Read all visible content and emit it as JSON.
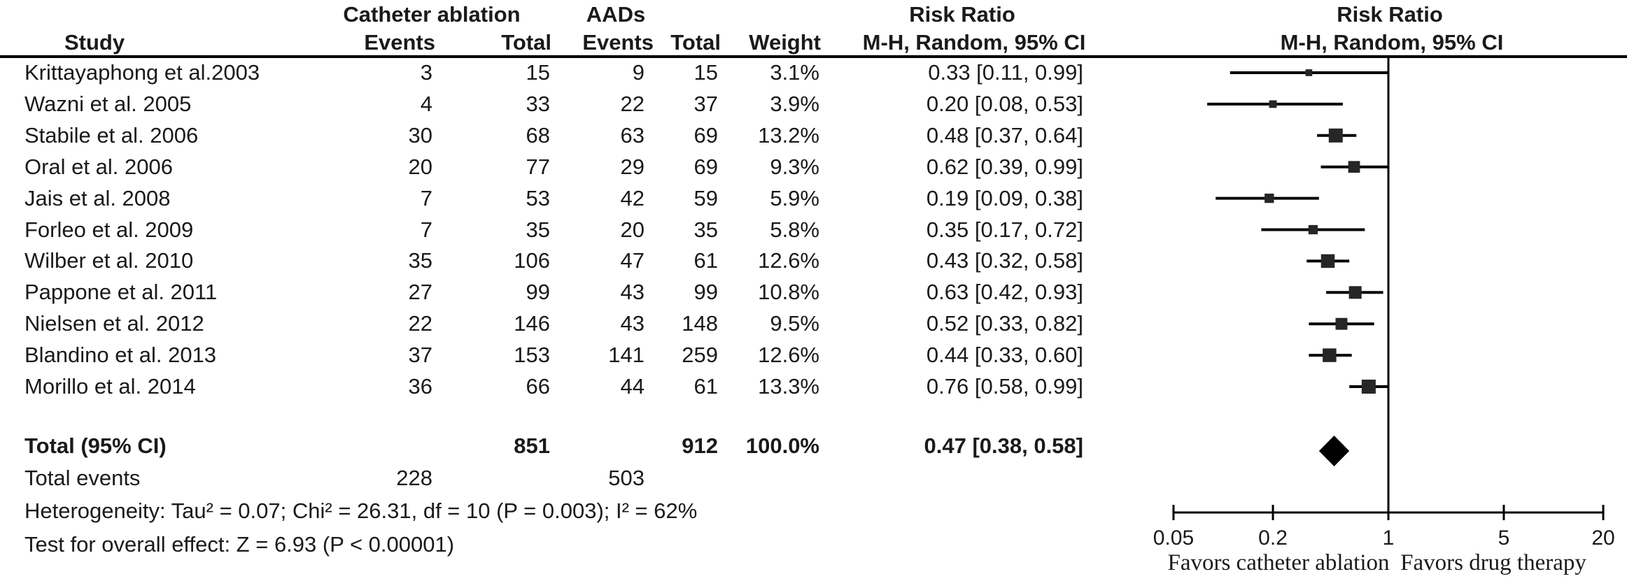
{
  "header": {
    "group_catheter": "Catheter ablation",
    "group_aads": "AADs",
    "study": "Study",
    "events": "Events",
    "total": "Total",
    "weight": "Weight",
    "rr_title": "Risk Ratio",
    "rr_method": "M-H, Random, 95% CI"
  },
  "chart_data": {
    "type": "scatter",
    "subtype": "forest-plot-meta-analysis",
    "effect_measure": "Risk Ratio, M-H, Random, 95% CI",
    "x_scale": "log",
    "x_range": [
      0.05,
      20
    ],
    "null_line": 1,
    "x_ticks": [
      "0.05",
      "0.2",
      "1",
      "5",
      "20"
    ],
    "x_tick_values": [
      0.05,
      0.2,
      1,
      5,
      20
    ],
    "favors_left": "Favors catheter ablation",
    "favors_right": "Favors drug therapy",
    "studies": [
      {
        "name": "Krittayaphong et al.2003",
        "events_ablation": "3",
        "total_ablation": "15",
        "events_aads": "9",
        "total_aads": "15",
        "weight": "3.1%",
        "weight_pct": 3.1,
        "rr_label": "0.33 [0.11, 0.99]",
        "rr": 0.33,
        "ci_low": 0.11,
        "ci_high": 0.99
      },
      {
        "name": "Wazni et al. 2005",
        "events_ablation": "4",
        "total_ablation": "33",
        "events_aads": "22",
        "total_aads": "37",
        "weight": "3.9%",
        "weight_pct": 3.9,
        "rr_label": "0.20 [0.08, 0.53]",
        "rr": 0.2,
        "ci_low": 0.08,
        "ci_high": 0.53
      },
      {
        "name": "Stabile et al. 2006",
        "events_ablation": "30",
        "total_ablation": "68",
        "events_aads": "63",
        "total_aads": "69",
        "weight": "13.2%",
        "weight_pct": 13.2,
        "rr_label": "0.48 [0.37, 0.64]",
        "rr": 0.48,
        "ci_low": 0.37,
        "ci_high": 0.64
      },
      {
        "name": "Oral et al. 2006",
        "events_ablation": "20",
        "total_ablation": "77",
        "events_aads": "29",
        "total_aads": "69",
        "weight": "9.3%",
        "weight_pct": 9.3,
        "rr_label": "0.62 [0.39, 0.99]",
        "rr": 0.62,
        "ci_low": 0.39,
        "ci_high": 0.99
      },
      {
        "name": "Jais et al. 2008",
        "events_ablation": "7",
        "total_ablation": "53",
        "events_aads": "42",
        "total_aads": "59",
        "weight": "5.9%",
        "weight_pct": 5.9,
        "rr_label": "0.19 [0.09, 0.38]",
        "rr": 0.19,
        "ci_low": 0.09,
        "ci_high": 0.38
      },
      {
        "name": "Forleo et al. 2009",
        "events_ablation": "7",
        "total_ablation": "35",
        "events_aads": "20",
        "total_aads": "35",
        "weight": "5.8%",
        "weight_pct": 5.8,
        "rr_label": "0.35 [0.17, 0.72]",
        "rr": 0.35,
        "ci_low": 0.17,
        "ci_high": 0.72
      },
      {
        "name": "Wilber et al. 2010",
        "events_ablation": "35",
        "total_ablation": "106",
        "events_aads": "47",
        "total_aads": "61",
        "weight": "12.6%",
        "weight_pct": 12.6,
        "rr_label": "0.43 [0.32, 0.58]",
        "rr": 0.43,
        "ci_low": 0.32,
        "ci_high": 0.58
      },
      {
        "name": "Pappone et al. 2011",
        "events_ablation": "27",
        "total_ablation": "99",
        "events_aads": "43",
        "total_aads": "99",
        "weight": "10.8%",
        "weight_pct": 10.8,
        "rr_label": "0.63 [0.42, 0.93]",
        "rr": 0.63,
        "ci_low": 0.42,
        "ci_high": 0.93
      },
      {
        "name": "Nielsen et al. 2012",
        "events_ablation": "22",
        "total_ablation": "146",
        "events_aads": "43",
        "total_aads": "148",
        "weight": "9.5%",
        "weight_pct": 9.5,
        "rr_label": "0.52 [0.33, 0.82]",
        "rr": 0.52,
        "ci_low": 0.33,
        "ci_high": 0.82
      },
      {
        "name": "Blandino et al. 2013",
        "events_ablation": "37",
        "total_ablation": "153",
        "events_aads": "141",
        "total_aads": "259",
        "weight": "12.6%",
        "weight_pct": 12.6,
        "rr_label": "0.44 [0.33, 0.60]",
        "rr": 0.44,
        "ci_low": 0.33,
        "ci_high": 0.6
      },
      {
        "name": "Morillo et al. 2014",
        "events_ablation": "36",
        "total_ablation": "66",
        "events_aads": "44",
        "total_aads": "61",
        "weight": "13.3%",
        "weight_pct": 13.3,
        "rr_label": "0.76 [0.58, 0.99]",
        "rr": 0.76,
        "ci_low": 0.58,
        "ci_high": 0.99
      }
    ],
    "overall": {
      "label": "Total (95% CI)",
      "total_ablation": "851",
      "total_aads": "912",
      "weight": "100.0%",
      "rr_label": "0.47 [0.38, 0.58]",
      "rr": 0.47,
      "ci_low": 0.38,
      "ci_high": 0.58
    }
  },
  "footer": {
    "total_events_label": "Total events",
    "total_events_ablation": "228",
    "total_events_aads": "503",
    "heterogeneity": "Heterogeneity: Tau² = 0.07; Chi² = 26.31, df = 10 (P = 0.003); I² = 62%",
    "overall_effect": "Test for overall effect: Z = 6.93 (P < 0.00001)"
  }
}
